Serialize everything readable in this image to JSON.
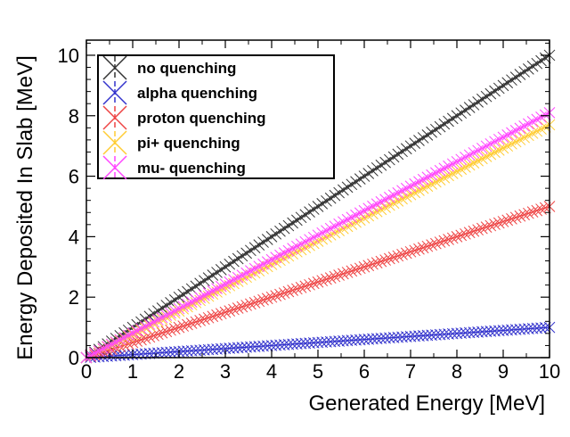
{
  "chart_data": {
    "type": "scatter",
    "title": "",
    "xlabel": "Generated Energy [MeV]",
    "ylabel": "Energy Deposited In Slab [MeV]",
    "xlim": [
      0,
      10
    ],
    "ylim": [
      0,
      10.5
    ],
    "xticks": [
      "0",
      "1",
      "2",
      "3",
      "4",
      "5",
      "6",
      "7",
      "8",
      "9",
      "10"
    ],
    "yticks": [
      "0",
      "2",
      "4",
      "6",
      "8",
      "10"
    ],
    "grid": false,
    "legend_position": "top-left",
    "marker": "x",
    "x": [
      0,
      10
    ],
    "series": [
      {
        "name": "no quenching",
        "color": "#333333",
        "values": [
          0,
          10.0
        ]
      },
      {
        "name": "alpha quenching",
        "color": "#3333cc",
        "values": [
          0,
          1.0
        ]
      },
      {
        "name": "proton quenching",
        "color": "#ee4444",
        "values": [
          0,
          5.0
        ]
      },
      {
        "name": "pi+ quenching",
        "color": "#ffcc33",
        "values": [
          0,
          7.7
        ]
      },
      {
        "name": "mu- quenching",
        "color": "#ff44ff",
        "values": [
          0,
          8.1
        ]
      }
    ]
  }
}
